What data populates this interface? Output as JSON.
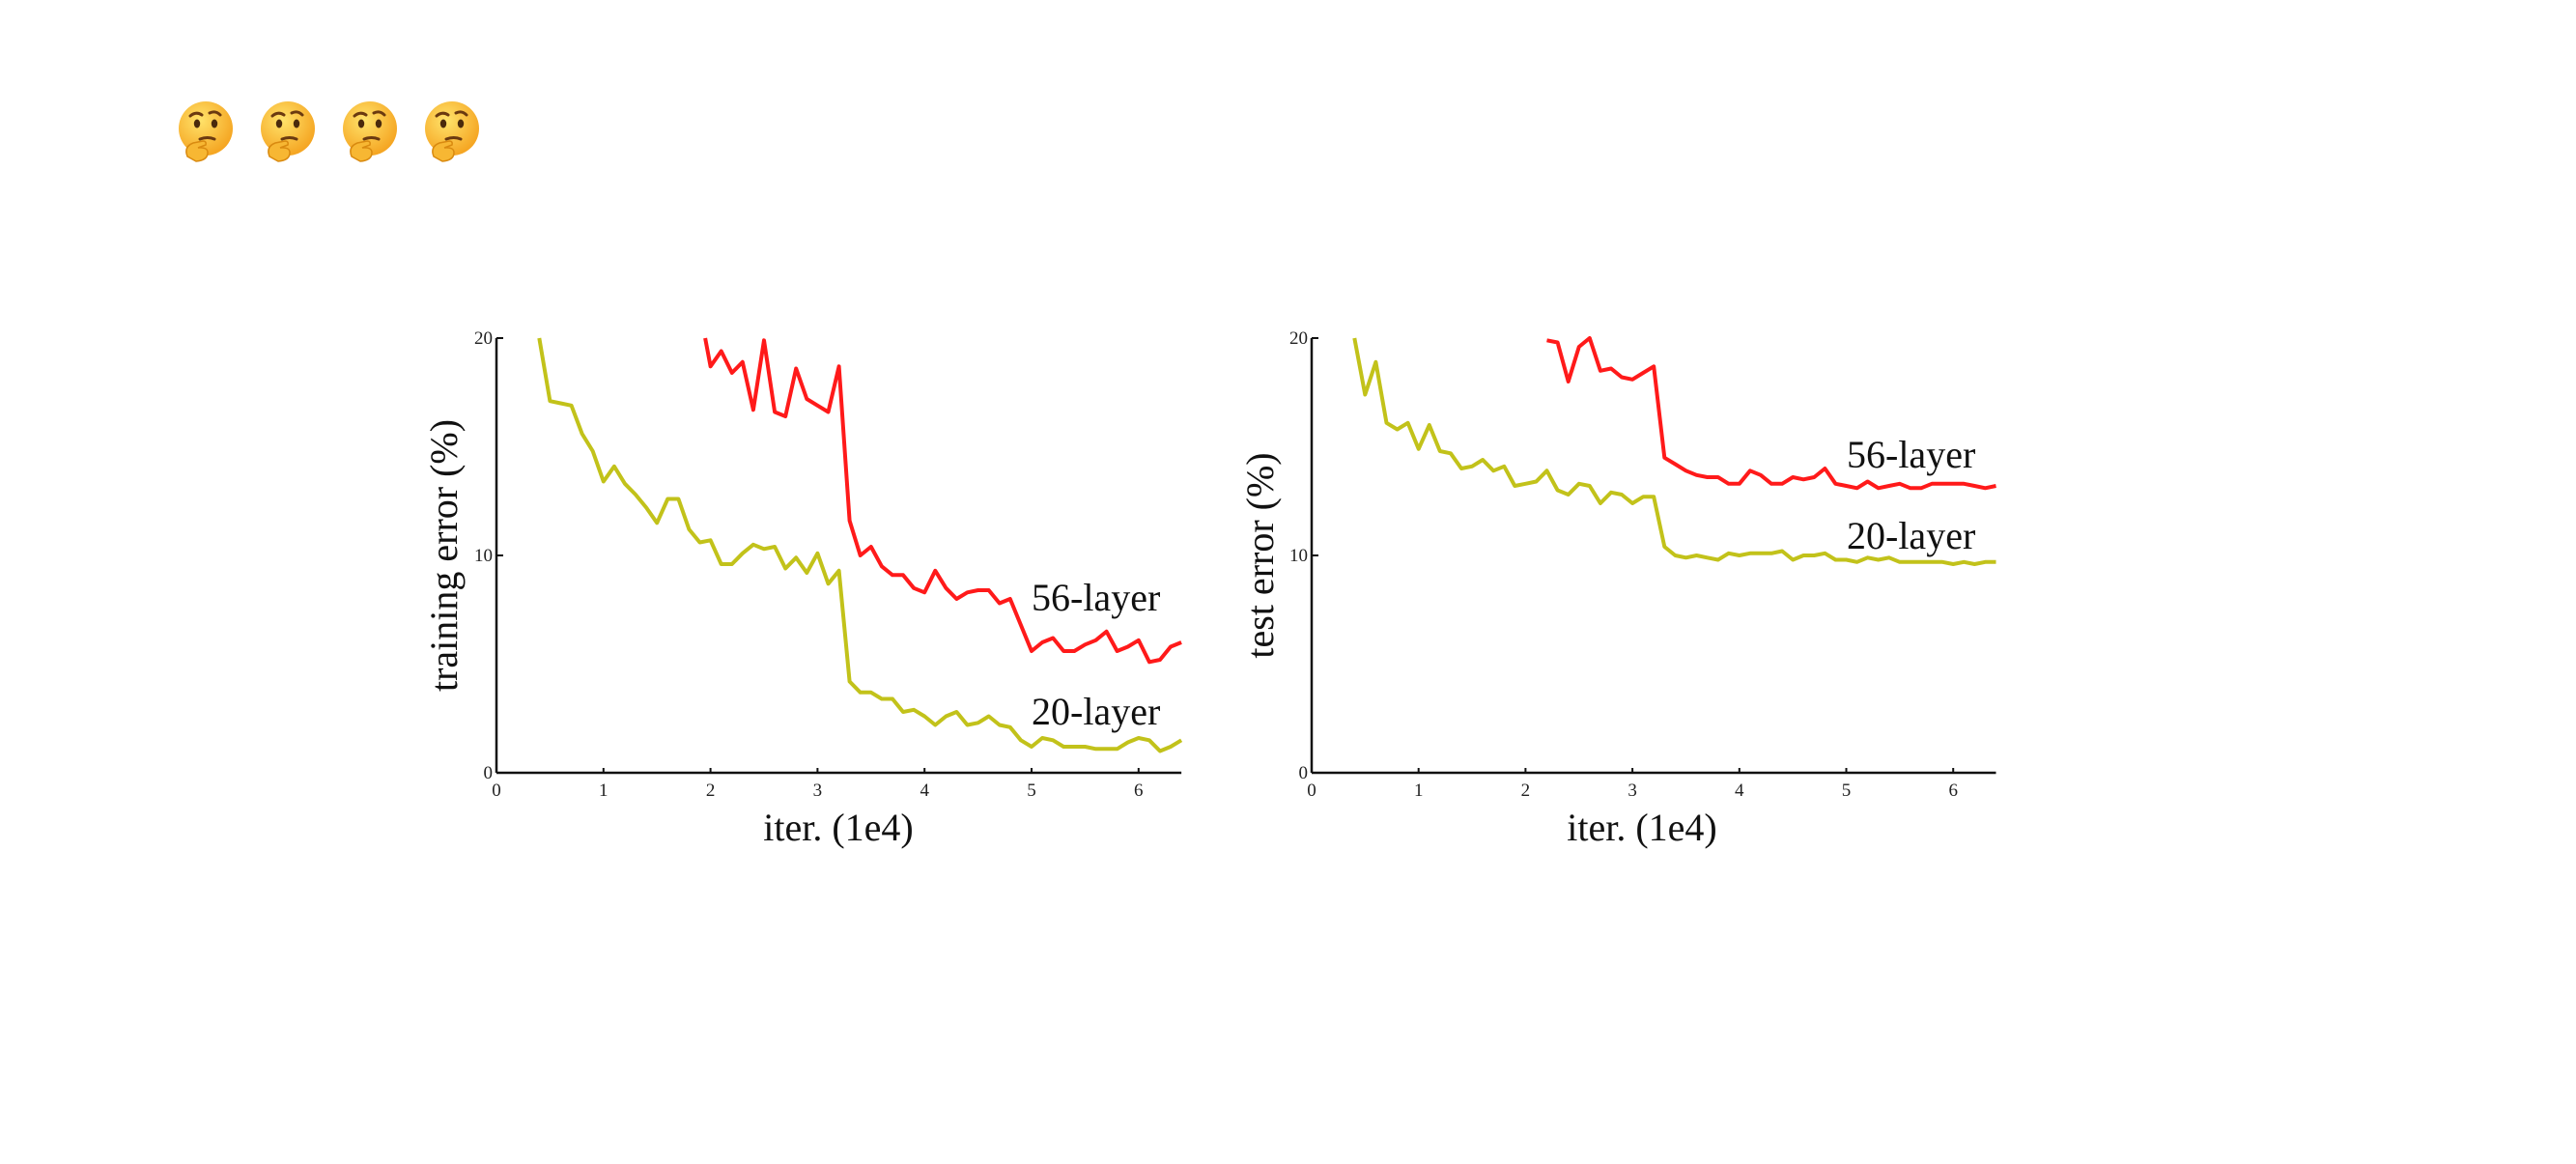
{
  "header": {
    "icons": [
      "thinking-face-icon",
      "thinking-face-icon",
      "thinking-face-icon",
      "thinking-face-icon"
    ]
  },
  "colors": {
    "series_56": "#ff1a1a",
    "series_20": "#c2c21a",
    "axis": "#111111"
  },
  "chart_data": [
    {
      "type": "line",
      "title": "",
      "xlabel": "iter. (1e4)",
      "ylabel": "training error (%)",
      "xlim": [
        0,
        6.4
      ],
      "ylim": [
        0,
        20
      ],
      "xticks": [
        "0",
        "1",
        "2",
        "3",
        "4",
        "5",
        "6"
      ],
      "yticks": [
        "0",
        "10",
        "20"
      ],
      "grid": false,
      "series": [
        {
          "name": "56-layer",
          "color": "#ff1a1a",
          "x": [
            1.95,
            2.0,
            2.1,
            2.2,
            2.3,
            2.4,
            2.5,
            2.6,
            2.7,
            2.8,
            2.9,
            3.0,
            3.1,
            3.2,
            3.3,
            3.4,
            3.5,
            3.6,
            3.7,
            3.8,
            3.9,
            4.0,
            4.1,
            4.2,
            4.3,
            4.4,
            4.5,
            4.6,
            4.7,
            4.8,
            4.9,
            5.0,
            5.1,
            5.2,
            5.3,
            5.4,
            5.5,
            5.6,
            5.7,
            5.8,
            5.9,
            6.0,
            6.1,
            6.2,
            6.3,
            6.4
          ],
          "y": [
            20,
            18.7,
            19.4,
            18.4,
            18.9,
            16.7,
            19.9,
            16.6,
            16.4,
            18.6,
            17.2,
            16.9,
            16.6,
            18.7,
            11.6,
            10.0,
            10.4,
            9.5,
            9.1,
            9.1,
            8.5,
            8.3,
            9.3,
            8.5,
            8.0,
            8.3,
            8.4,
            8.4,
            7.8,
            8.0,
            6.8,
            5.6,
            6.0,
            6.2,
            5.6,
            5.6,
            5.9,
            6.1,
            6.5,
            5.6,
            5.8,
            6.1,
            5.1,
            5.2,
            5.8,
            6.0
          ]
        },
        {
          "name": "20-layer",
          "color": "#c2c21a",
          "x": [
            0.4,
            0.5,
            0.6,
            0.7,
            0.8,
            0.9,
            1.0,
            1.1,
            1.2,
            1.3,
            1.4,
            1.5,
            1.6,
            1.7,
            1.8,
            1.9,
            2.0,
            2.1,
            2.2,
            2.3,
            2.4,
            2.5,
            2.6,
            2.7,
            2.8,
            2.9,
            3.0,
            3.1,
            3.2,
            3.3,
            3.4,
            3.5,
            3.6,
            3.7,
            3.8,
            3.9,
            4.0,
            4.1,
            4.2,
            4.3,
            4.4,
            4.5,
            4.6,
            4.7,
            4.8,
            4.9,
            5.0,
            5.1,
            5.2,
            5.3,
            5.4,
            5.5,
            5.6,
            5.7,
            5.8,
            5.9,
            6.0,
            6.1,
            6.2,
            6.3,
            6.4
          ],
          "y": [
            20,
            17.1,
            17.0,
            16.9,
            15.6,
            14.8,
            13.4,
            14.1,
            13.3,
            12.8,
            12.2,
            11.5,
            12.6,
            12.6,
            11.2,
            10.6,
            10.7,
            9.6,
            9.6,
            10.1,
            10.5,
            10.3,
            10.4,
            9.4,
            9.9,
            9.2,
            10.1,
            8.7,
            9.3,
            4.2,
            3.7,
            3.7,
            3.4,
            3.4,
            2.8,
            2.9,
            2.6,
            2.2,
            2.6,
            2.8,
            2.2,
            2.3,
            2.6,
            2.2,
            2.1,
            1.5,
            1.2,
            1.6,
            1.5,
            1.2,
            1.2,
            1.2,
            1.1,
            1.1,
            1.1,
            1.4,
            1.6,
            1.5,
            1.0,
            1.2,
            1.5
          ]
        }
      ],
      "annotations": [
        "56-layer",
        "20-layer"
      ]
    },
    {
      "type": "line",
      "title": "",
      "xlabel": "iter. (1e4)",
      "ylabel": "test error (%)",
      "xlim": [
        0,
        6.4
      ],
      "ylim": [
        0,
        20
      ],
      "xticks": [
        "0",
        "1",
        "2",
        "3",
        "4",
        "5",
        "6"
      ],
      "yticks": [
        "0",
        "10",
        "20"
      ],
      "grid": false,
      "series": [
        {
          "name": "56-layer",
          "color": "#ff1a1a",
          "x": [
            2.2,
            2.3,
            2.4,
            2.5,
            2.6,
            2.7,
            2.8,
            2.9,
            3.0,
            3.1,
            3.2,
            3.3,
            3.4,
            3.5,
            3.6,
            3.7,
            3.8,
            3.9,
            4.0,
            4.1,
            4.2,
            4.3,
            4.4,
            4.5,
            4.6,
            4.7,
            4.8,
            4.9,
            5.0,
            5.1,
            5.2,
            5.3,
            5.4,
            5.5,
            5.6,
            5.7,
            5.8,
            5.9,
            6.0,
            6.1,
            6.2,
            6.3,
            6.4
          ],
          "y": [
            19.9,
            19.8,
            18.0,
            19.6,
            20.0,
            18.5,
            18.6,
            18.2,
            18.1,
            18.4,
            18.7,
            14.5,
            14.2,
            13.9,
            13.7,
            13.6,
            13.6,
            13.3,
            13.3,
            13.9,
            13.7,
            13.3,
            13.3,
            13.6,
            13.5,
            13.6,
            14.0,
            13.3,
            13.2,
            13.1,
            13.4,
            13.1,
            13.2,
            13.3,
            13.1,
            13.1,
            13.3,
            13.3,
            13.3,
            13.3,
            13.2,
            13.1,
            13.2
          ]
        },
        {
          "name": "20-layer",
          "color": "#c2c21a",
          "x": [
            0.4,
            0.5,
            0.6,
            0.7,
            0.8,
            0.9,
            1.0,
            1.1,
            1.2,
            1.3,
            1.4,
            1.5,
            1.6,
            1.7,
            1.8,
            1.9,
            2.0,
            2.1,
            2.2,
            2.3,
            2.4,
            2.5,
            2.6,
            2.7,
            2.8,
            2.9,
            3.0,
            3.1,
            3.2,
            3.3,
            3.4,
            3.5,
            3.6,
            3.7,
            3.8,
            3.9,
            4.0,
            4.1,
            4.2,
            4.3,
            4.4,
            4.5,
            4.6,
            4.7,
            4.8,
            4.9,
            5.0,
            5.1,
            5.2,
            5.3,
            5.4,
            5.5,
            5.6,
            5.7,
            5.8,
            5.9,
            6.0,
            6.1,
            6.2,
            6.3,
            6.4
          ],
          "y": [
            20,
            17.4,
            18.9,
            16.1,
            15.8,
            16.1,
            14.9,
            16.0,
            14.8,
            14.7,
            14.0,
            14.1,
            14.4,
            13.9,
            14.1,
            13.2,
            13.3,
            13.4,
            13.9,
            13.0,
            12.8,
            13.3,
            13.2,
            12.4,
            12.9,
            12.8,
            12.4,
            12.7,
            12.7,
            10.4,
            10.0,
            9.9,
            10.0,
            9.9,
            9.8,
            10.1,
            10.0,
            10.1,
            10.1,
            10.1,
            10.2,
            9.8,
            10.0,
            10.0,
            10.1,
            9.8,
            9.8,
            9.7,
            9.9,
            9.8,
            9.9,
            9.7,
            9.7,
            9.7,
            9.7,
            9.7,
            9.6,
            9.7,
            9.6,
            9.7,
            9.7
          ]
        }
      ],
      "annotations": [
        "56-layer",
        "20-layer"
      ]
    }
  ]
}
